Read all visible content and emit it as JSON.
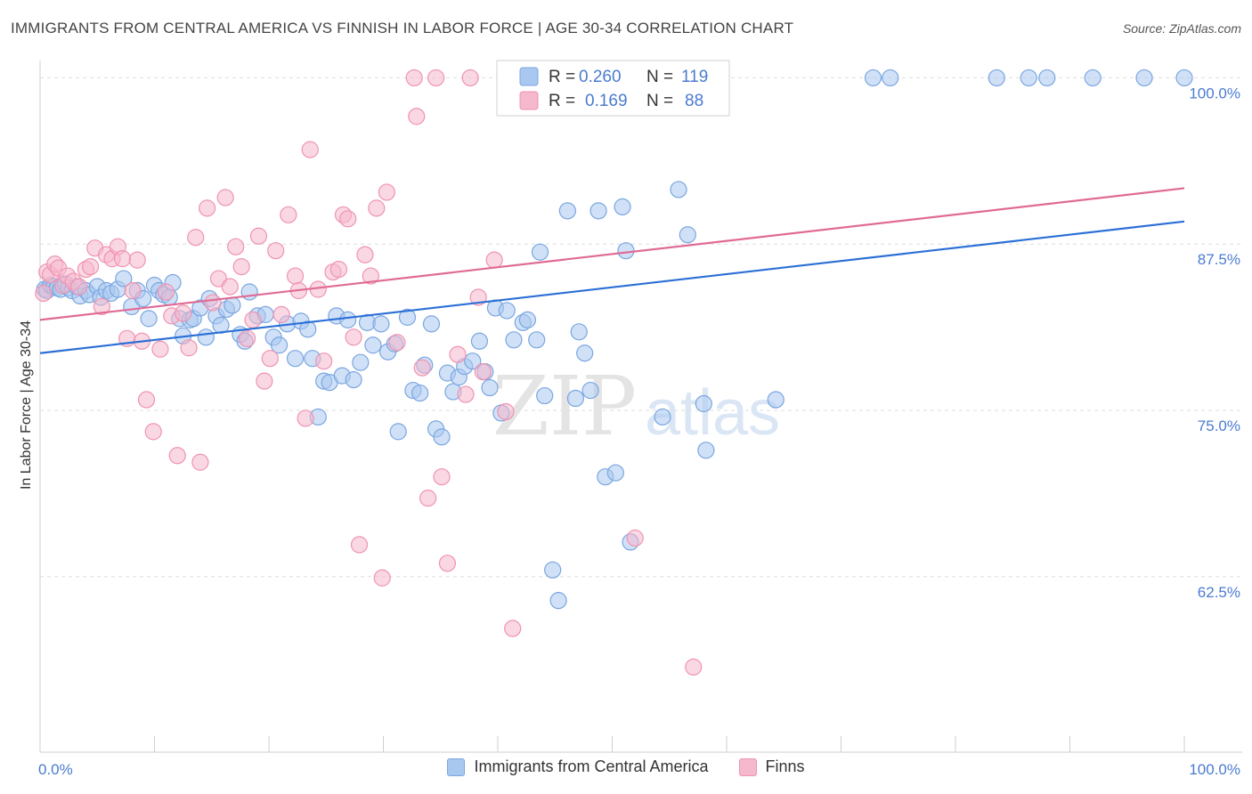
{
  "header": {
    "title": "IMMIGRANTS FROM CENTRAL AMERICA VS FINNISH IN LABOR FORCE | AGE 30-34 CORRELATION CHART",
    "source": "Source: ZipAtlas.com"
  },
  "watermark": {
    "zip": "ZIP",
    "atlas": "atlas"
  },
  "colors": {
    "blue_fill": "#a9c8f0",
    "blue_stroke": "#7aa6e0",
    "blue_line": "#2b6fd6",
    "pink_fill": "#f5b8cc",
    "pink_stroke": "#ef93b1",
    "pink_line": "#e06a95",
    "tick_label": "#4a7bd0",
    "grid": "#dddddd"
  },
  "legend_top": {
    "rows": [
      {
        "series": "blue",
        "r_label": "R =",
        "r_value": "0.260",
        "n_label": "N =",
        "n_value": "119"
      },
      {
        "series": "pink",
        "r_label": "R =",
        "r_value": "0.169",
        "n_label": "N =",
        "n_value": "88"
      }
    ]
  },
  "legend_bottom": {
    "items": [
      {
        "series": "blue",
        "label": "Immigrants from Central America"
      },
      {
        "series": "pink",
        "label": "Finns"
      }
    ]
  },
  "chart_data": {
    "type": "scatter",
    "title": "IMMIGRANTS FROM CENTRAL AMERICA VS FINNISH IN LABOR FORCE | AGE 30-34 CORRELATION CHART",
    "xlabel": "",
    "ylabel": "In Labor Force | Age 30-34",
    "xlim": [
      0,
      100
    ],
    "ylim": [
      49.3,
      101.3
    ],
    "x_tick_labels": [
      {
        "value": 0,
        "label": "0.0%"
      },
      {
        "value": 100,
        "label": "100.0%"
      }
    ],
    "y_tick_labels": [
      {
        "value": 100,
        "label": "100.0%"
      },
      {
        "value": 87.5,
        "label": "87.5%"
      },
      {
        "value": 75,
        "label": "75.0%"
      },
      {
        "value": 62.5,
        "label": "62.5%"
      }
    ],
    "grid": "horizontal dashed",
    "legend_position": "top-center",
    "series": [
      {
        "name": "Immigrants from Central America",
        "color": "blue",
        "R": 0.26,
        "N": 119,
        "trend": {
          "x": [
            0,
            100
          ],
          "y": [
            79.3,
            89.2
          ]
        },
        "points": [
          [
            0.4,
            84.1
          ],
          [
            0.6,
            84.0
          ],
          [
            0.9,
            84.4
          ],
          [
            1.2,
            84.3
          ],
          [
            1.5,
            84.2
          ],
          [
            1.8,
            84.1
          ],
          [
            2.2,
            84.5
          ],
          [
            2.5,
            84.2
          ],
          [
            2.8,
            84.0
          ],
          [
            3.2,
            84.3
          ],
          [
            3.5,
            83.6
          ],
          [
            4.0,
            84.0
          ],
          [
            4.3,
            83.7
          ],
          [
            5.0,
            84.3
          ],
          [
            5.3,
            83.5
          ],
          [
            5.8,
            84.0
          ],
          [
            6.2,
            83.8
          ],
          [
            6.8,
            84.1
          ],
          [
            7.3,
            84.9
          ],
          [
            8.0,
            82.8
          ],
          [
            8.5,
            84.0
          ],
          [
            9.0,
            83.4
          ],
          [
            9.5,
            81.9
          ],
          [
            10.0,
            84.4
          ],
          [
            10.4,
            84.0
          ],
          [
            10.8,
            83.7
          ],
          [
            11.3,
            83.5
          ],
          [
            11.6,
            84.6
          ],
          [
            12.2,
            81.9
          ],
          [
            12.5,
            80.6
          ],
          [
            13.1,
            81.8
          ],
          [
            13.4,
            81.9
          ],
          [
            14.0,
            82.7
          ],
          [
            14.5,
            80.5
          ],
          [
            14.8,
            83.4
          ],
          [
            15.4,
            82.1
          ],
          [
            15.8,
            81.4
          ],
          [
            16.3,
            82.6
          ],
          [
            16.8,
            82.9
          ],
          [
            17.5,
            80.7
          ],
          [
            17.9,
            80.2
          ],
          [
            18.3,
            83.9
          ],
          [
            19.0,
            82.1
          ],
          [
            19.7,
            82.2
          ],
          [
            20.4,
            80.5
          ],
          [
            20.9,
            79.9
          ],
          [
            21.6,
            81.5
          ],
          [
            22.3,
            78.9
          ],
          [
            22.8,
            81.7
          ],
          [
            23.4,
            81.1
          ],
          [
            23.8,
            78.9
          ],
          [
            24.3,
            74.5
          ],
          [
            24.8,
            77.2
          ],
          [
            25.3,
            77.1
          ],
          [
            25.9,
            82.1
          ],
          [
            26.4,
            77.6
          ],
          [
            26.9,
            81.8
          ],
          [
            27.4,
            77.3
          ],
          [
            28.0,
            78.6
          ],
          [
            28.6,
            81.6
          ],
          [
            29.1,
            79.9
          ],
          [
            29.8,
            81.5
          ],
          [
            30.4,
            79.4
          ],
          [
            31.0,
            80.0
          ],
          [
            31.3,
            73.4
          ],
          [
            32.1,
            82.0
          ],
          [
            32.6,
            76.5
          ],
          [
            33.2,
            76.3
          ],
          [
            33.6,
            78.4
          ],
          [
            34.2,
            81.5
          ],
          [
            34.6,
            73.6
          ],
          [
            35.1,
            73.0
          ],
          [
            35.6,
            77.8
          ],
          [
            36.1,
            76.4
          ],
          [
            36.6,
            77.5
          ],
          [
            37.1,
            78.3
          ],
          [
            37.8,
            78.7
          ],
          [
            38.4,
            80.2
          ],
          [
            38.9,
            77.9
          ],
          [
            39.3,
            76.7
          ],
          [
            39.8,
            82.7
          ],
          [
            40.3,
            74.8
          ],
          [
            40.8,
            82.5
          ],
          [
            41.4,
            80.3
          ],
          [
            42.2,
            81.6
          ],
          [
            42.6,
            81.8
          ],
          [
            43.4,
            80.3
          ],
          [
            43.7,
            86.9
          ],
          [
            44.1,
            76.1
          ],
          [
            44.8,
            63.0
          ],
          [
            45.3,
            60.7
          ],
          [
            46.1,
            90.0
          ],
          [
            46.8,
            75.9
          ],
          [
            47.1,
            80.9
          ],
          [
            47.6,
            79.3
          ],
          [
            48.1,
            76.5
          ],
          [
            48.8,
            90.0
          ],
          [
            49.4,
            70.0
          ],
          [
            50.3,
            70.3
          ],
          [
            50.9,
            90.3
          ],
          [
            51.2,
            87.0
          ],
          [
            51.6,
            65.1
          ],
          [
            54.4,
            74.5
          ],
          [
            55.8,
            91.6
          ],
          [
            56.6,
            88.2
          ],
          [
            58.0,
            75.5
          ],
          [
            58.2,
            72.0
          ],
          [
            64.3,
            75.8
          ],
          [
            72.8,
            100.0
          ],
          [
            74.3,
            100.0
          ],
          [
            83.6,
            100.0
          ],
          [
            86.4,
            100.0
          ],
          [
            88.0,
            100.0
          ],
          [
            92.0,
            100.0
          ],
          [
            96.5,
            100.0
          ],
          [
            100.0,
            100.0
          ]
        ]
      },
      {
        "name": "Finns",
        "color": "pink",
        "R": 0.169,
        "N": 88,
        "trend": {
          "x": [
            0,
            100
          ],
          "y": [
            81.8,
            91.7
          ]
        },
        "points": [
          [
            0.3,
            83.8
          ],
          [
            0.6,
            85.4
          ],
          [
            0.9,
            85.2
          ],
          [
            1.3,
            86.0
          ],
          [
            1.6,
            85.7
          ],
          [
            2.0,
            84.4
          ],
          [
            2.4,
            85.1
          ],
          [
            2.9,
            84.7
          ],
          [
            3.4,
            84.3
          ],
          [
            4.0,
            85.6
          ],
          [
            4.4,
            85.8
          ],
          [
            4.8,
            87.2
          ],
          [
            5.4,
            82.8
          ],
          [
            5.8,
            86.7
          ],
          [
            6.3,
            86.4
          ],
          [
            6.8,
            87.3
          ],
          [
            7.2,
            86.4
          ],
          [
            7.6,
            80.4
          ],
          [
            8.1,
            84.0
          ],
          [
            8.5,
            86.3
          ],
          [
            8.9,
            80.2
          ],
          [
            9.3,
            75.8
          ],
          [
            9.9,
            73.4
          ],
          [
            10.5,
            79.6
          ],
          [
            11.0,
            83.9
          ],
          [
            11.5,
            82.1
          ],
          [
            12.0,
            71.6
          ],
          [
            12.5,
            82.3
          ],
          [
            13.0,
            79.7
          ],
          [
            13.6,
            88.0
          ],
          [
            14.0,
            71.1
          ],
          [
            14.6,
            90.2
          ],
          [
            15.1,
            83.1
          ],
          [
            15.6,
            84.9
          ],
          [
            16.2,
            91.0
          ],
          [
            16.6,
            84.3
          ],
          [
            17.1,
            87.3
          ],
          [
            17.6,
            85.8
          ],
          [
            18.1,
            80.4
          ],
          [
            18.6,
            81.8
          ],
          [
            19.1,
            88.1
          ],
          [
            19.6,
            77.2
          ],
          [
            20.1,
            78.9
          ],
          [
            20.6,
            87.0
          ],
          [
            21.1,
            82.2
          ],
          [
            21.7,
            89.7
          ],
          [
            22.3,
            85.1
          ],
          [
            22.6,
            84.0
          ],
          [
            23.2,
            74.4
          ],
          [
            23.6,
            94.6
          ],
          [
            24.3,
            84.1
          ],
          [
            24.8,
            78.7
          ],
          [
            25.6,
            85.4
          ],
          [
            26.1,
            85.6
          ],
          [
            26.5,
            89.7
          ],
          [
            26.9,
            89.4
          ],
          [
            27.4,
            80.5
          ],
          [
            27.9,
            64.9
          ],
          [
            28.4,
            86.7
          ],
          [
            28.9,
            85.1
          ],
          [
            29.4,
            90.2
          ],
          [
            29.9,
            62.4
          ],
          [
            30.3,
            91.4
          ],
          [
            31.2,
            80.1
          ],
          [
            32.7,
            100.0
          ],
          [
            32.9,
            97.1
          ],
          [
            33.4,
            78.2
          ],
          [
            33.9,
            68.4
          ],
          [
            34.6,
            100.0
          ],
          [
            35.1,
            70.0
          ],
          [
            35.6,
            63.5
          ],
          [
            36.5,
            79.2
          ],
          [
            37.2,
            76.2
          ],
          [
            37.6,
            100.0
          ],
          [
            38.3,
            83.5
          ],
          [
            38.7,
            77.9
          ],
          [
            39.7,
            86.3
          ],
          [
            40.7,
            74.9
          ],
          [
            41.3,
            58.6
          ],
          [
            43.8,
            100.0
          ],
          [
            46.4,
            100.0
          ],
          [
            49.2,
            100.0
          ],
          [
            52.0,
            65.4
          ],
          [
            55.6,
            100.0
          ],
          [
            57.1,
            55.7
          ]
        ]
      }
    ]
  }
}
